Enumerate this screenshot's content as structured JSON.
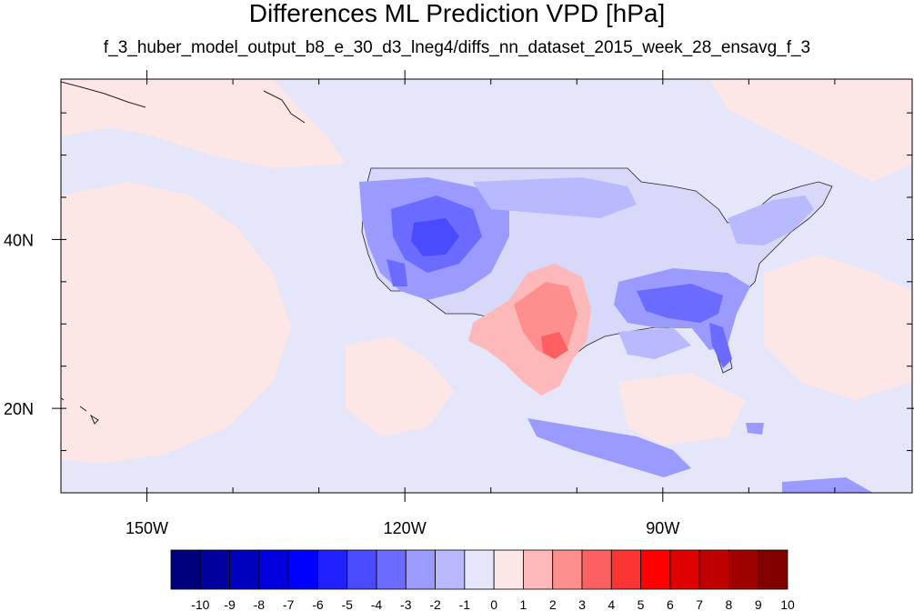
{
  "title": "Differences ML Prediction VPD [hPa]",
  "subtitle": "f_3_huber_model_output_b8_e_30_d3_lneg4/diffs_nn_dataset_2015_week_28_ensavg_f_3",
  "map": {
    "lon_range": [
      -160,
      -61
    ],
    "lat_range": [
      10,
      59
    ],
    "x_ticks": [
      {
        "lon": -150,
        "label": "150W"
      },
      {
        "lon": -120,
        "label": "120W"
      },
      {
        "lon": -90,
        "label": "90W"
      }
    ],
    "y_ticks": [
      {
        "lat": 40,
        "label": "40N"
      },
      {
        "lat": 20,
        "label": "20N"
      }
    ],
    "background_fill": "#e6e6fa"
  },
  "colorbar": {
    "labels": [
      "-10",
      "-9",
      "-8",
      "-7",
      "-6",
      "-5",
      "-4",
      "-3",
      "-2",
      "-1",
      "0",
      "1",
      "2",
      "3",
      "4",
      "5",
      "6",
      "7",
      "8",
      "9",
      "10"
    ],
    "colors": [
      "#00007f",
      "#00009f",
      "#0000bf",
      "#0000df",
      "#0000ff",
      "#2121ff",
      "#4a4aff",
      "#6b6bff",
      "#9a9aff",
      "#b9b9ff",
      "#e6e6fa",
      "#fde6e6",
      "#fdb9b9",
      "#fd8f8f",
      "#fd6060",
      "#fd3434",
      "#ff0000",
      "#df0000",
      "#bf0000",
      "#9f0000",
      "#800000"
    ]
  }
}
